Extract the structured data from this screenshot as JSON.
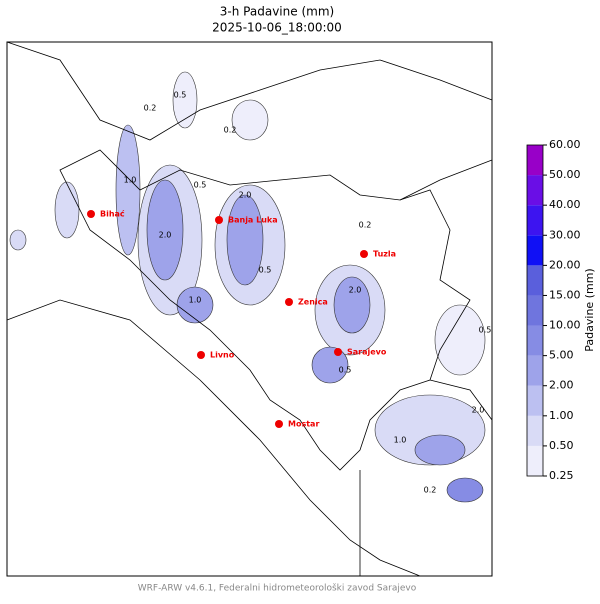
{
  "title": "3-h Padavine (mm)",
  "subtitle": "2025-10-06_18:00:00",
  "cities": [
    "Bihać",
    "Banja Luka",
    "Tuzla",
    "Zenica",
    "Sarajevo",
    "Livno",
    "Mostar"
  ],
  "contour_labels": [
    "0.2",
    "0.5",
    "1.0",
    "2.0",
    "0.2",
    "0.5",
    "2.0",
    "1.0",
    "0.5",
    "0.2",
    "2.0",
    "0.5",
    "1.0",
    "0.2",
    "2.0",
    "0.5"
  ],
  "colorbar": {
    "label": "Padavine (mm)",
    "levels": [
      {
        "value": 0.25,
        "label": "0.25"
      },
      {
        "value": 0.5,
        "label": "0.50"
      },
      {
        "value": 1,
        "label": "1.00"
      },
      {
        "value": 2,
        "label": "2.00"
      },
      {
        "value": 5,
        "label": "5.00"
      },
      {
        "value": 10,
        "label": "10.00"
      },
      {
        "value": 15,
        "label": "15.00"
      },
      {
        "value": 20,
        "label": "20.00"
      },
      {
        "value": 30,
        "label": "30.00"
      },
      {
        "value": 40,
        "label": "40.00"
      },
      {
        "value": 50,
        "label": "50.00"
      },
      {
        "value": 60,
        "label": "60.00"
      }
    ],
    "colors": [
      "#eeeefb",
      "#d9dbf6",
      "#bcc0f1",
      "#9ea3ea",
      "#868ce4",
      "#6f75de",
      "#5a5fdc",
      "#1010f5",
      "#3d14f0",
      "#6a0ee6",
      "#9800c8"
    ]
  },
  "footer": "WRF-ARW v4.6.1, Federalni hidrometeorološki zavod Sarajevo"
}
